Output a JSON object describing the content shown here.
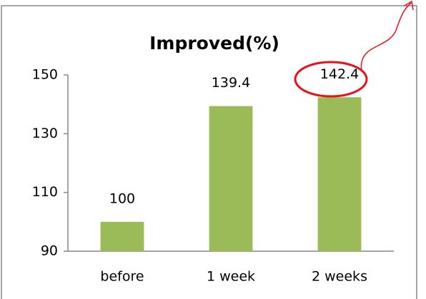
{
  "chart_data": {
    "type": "bar",
    "title": "Improved(%)",
    "categories": [
      "before",
      "1 week",
      "2 weeks"
    ],
    "values": [
      100,
      139.4,
      142.4
    ],
    "color": "#9bbb59",
    "ylim": [
      90,
      150
    ],
    "yticks": [
      90,
      110,
      130,
      150
    ],
    "grid": false
  }
}
